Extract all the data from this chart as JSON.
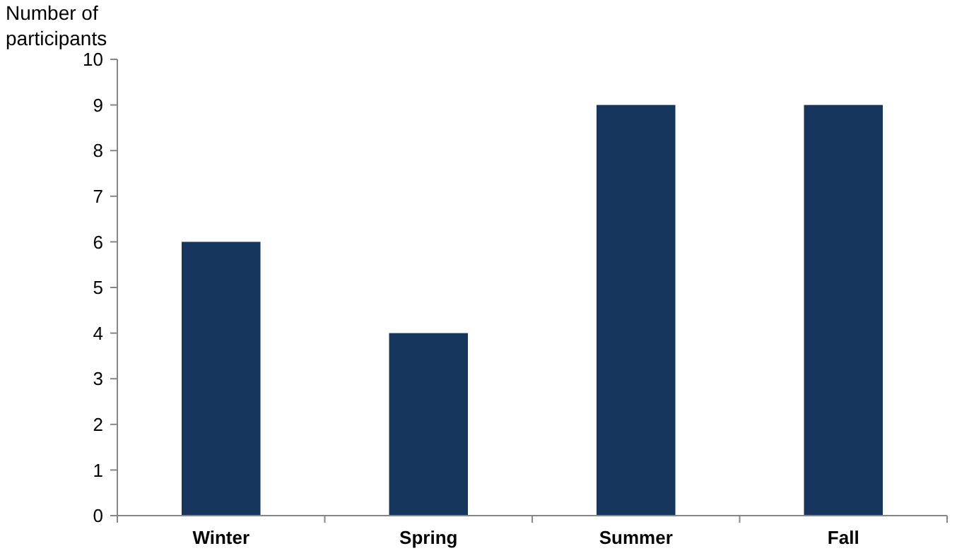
{
  "chart_data": {
    "type": "bar",
    "ylabel": "Number of participants",
    "categories": [
      "Winter",
      "Spring",
      "Summer",
      "Fall"
    ],
    "values": [
      6,
      4,
      9,
      9
    ],
    "color": "#17365d",
    "ylim": [
      0,
      10
    ],
    "yticks": [
      0,
      1,
      2,
      3,
      4,
      5,
      6,
      7,
      8,
      9,
      10
    ],
    "grid": false
  }
}
